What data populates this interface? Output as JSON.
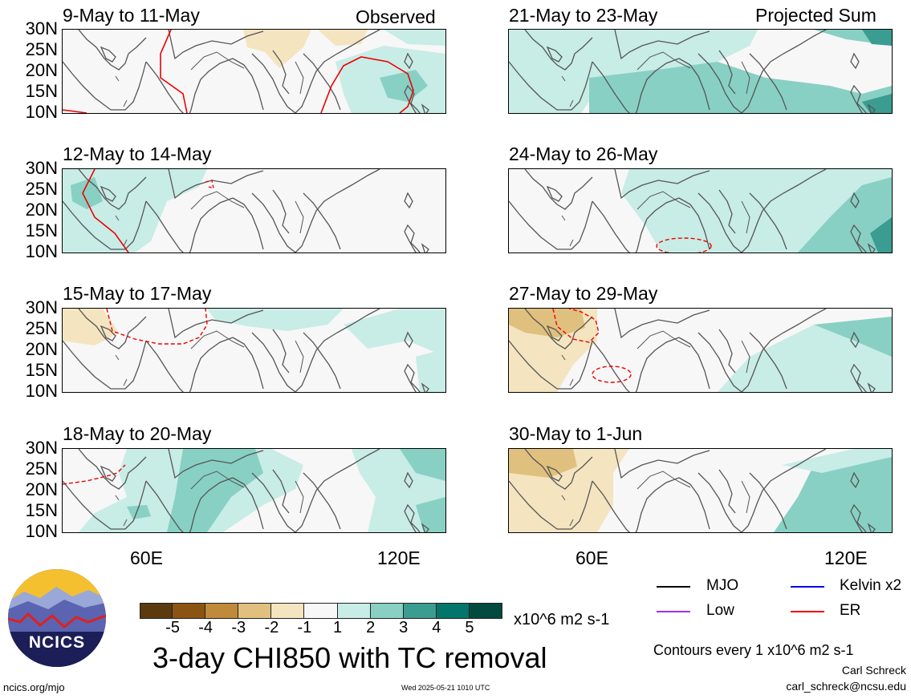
{
  "panels": {
    "observed": [
      {
        "title": "9-May to 11-May",
        "tag": "Observed"
      },
      {
        "title": "12-May to 14-May"
      },
      {
        "title": "15-May to 17-May"
      },
      {
        "title": "18-May to 20-May"
      }
    ],
    "projected": [
      {
        "title": "21-May to 23-May",
        "tag": "Projected Sum"
      },
      {
        "title": "24-May to 26-May"
      },
      {
        "title": "27-May to 29-May"
      },
      {
        "title": "30-May to 1-Jun"
      }
    ]
  },
  "lat_labels": [
    "30N",
    "25N",
    "20N",
    "15N",
    "10N"
  ],
  "lon_labels": [
    "60E",
    "120E"
  ],
  "colorbar": {
    "colors": [
      "#5a3a0e",
      "#8c5412",
      "#c08a3c",
      "#e0c07e",
      "#f4e4c0",
      "#f7f7f7",
      "#c8ece6",
      "#88d0c4",
      "#3b9c92",
      "#03756a",
      "#004a40"
    ],
    "labels": [
      "-5",
      "-4",
      "-3",
      "-2",
      "-1",
      "1",
      "2",
      "3",
      "4",
      "5"
    ],
    "units": "x10^6 m2 s-1"
  },
  "main_title": "3-day CHI850 with TC removal",
  "legend": [
    {
      "label": "MJO",
      "color": "#000000"
    },
    {
      "label": "Kelvin x2",
      "color": "#0000ee"
    },
    {
      "label": "Low",
      "color": "#9933ee"
    },
    {
      "label": "ER",
      "color": "#ee0000"
    }
  ],
  "contour_note": "Contours every 1 x10^6 m2 s-1",
  "author": "Carl Schreck",
  "email": "carl_schreck@ncsu.edu",
  "site": "ncics.org/mjo",
  "timestamp": "Wed 2025-05-21 1010 UTC",
  "logo_text": "NCICS",
  "colors": {
    "land_outline": "#555555",
    "er_contour": "#ee0000"
  }
}
